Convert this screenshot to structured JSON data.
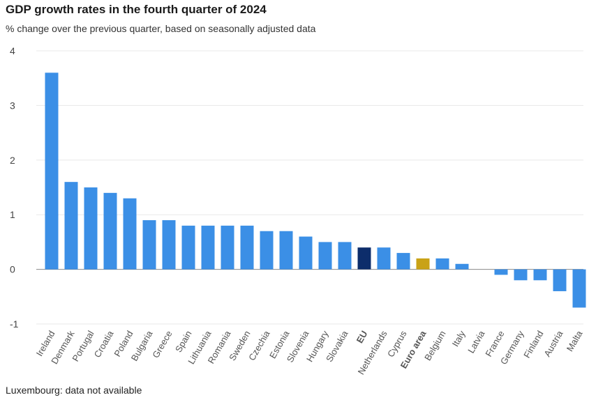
{
  "title": "GDP growth rates in the fourth quarter of 2024",
  "subtitle": "% change over the previous quarter, based on seasonally adjusted data",
  "footnote": "Luxembourg: data not available",
  "colors": {
    "default": "#3b8fe6",
    "eu": "#0d2d6b",
    "euro_area": "#c9a217",
    "grid": "#e8e8e8",
    "zero_line": "#888888"
  },
  "chart_data": {
    "type": "bar",
    "title": "GDP growth rates in the fourth quarter of 2024",
    "subtitle": "% change over the previous quarter, based on seasonally adjusted data",
    "xlabel": "",
    "ylabel": "",
    "ylim": [
      -1,
      4
    ],
    "yticks": [
      -1,
      0,
      1,
      2,
      3,
      4
    ],
    "grid": true,
    "legend": "none",
    "categories": [
      "Ireland",
      "Denmark",
      "Portugal",
      "Croatia",
      "Poland",
      "Bulgaria",
      "Greece",
      "Spain",
      "Lithuania",
      "Romania",
      "Sweden",
      "Czechia",
      "Estonia",
      "Slovenia",
      "Hungary",
      "Slovakia",
      "EU",
      "Netherlands",
      "Cyprus",
      "Euro area",
      "Belgium",
      "Italy",
      "Latvia",
      "France",
      "Germany",
      "Finland",
      "Austria",
      "Malta"
    ],
    "values": [
      3.6,
      1.6,
      1.5,
      1.4,
      1.3,
      0.9,
      0.9,
      0.8,
      0.8,
      0.8,
      0.8,
      0.7,
      0.7,
      0.6,
      0.5,
      0.5,
      0.4,
      0.4,
      0.3,
      0.2,
      0.2,
      0.1,
      0.0,
      -0.1,
      -0.2,
      -0.2,
      -0.4,
      -0.7
    ],
    "highlight": {
      "EU": "eu",
      "Euro area": "euro_area"
    },
    "bold_labels": [
      "EU",
      "Euro area"
    ]
  }
}
